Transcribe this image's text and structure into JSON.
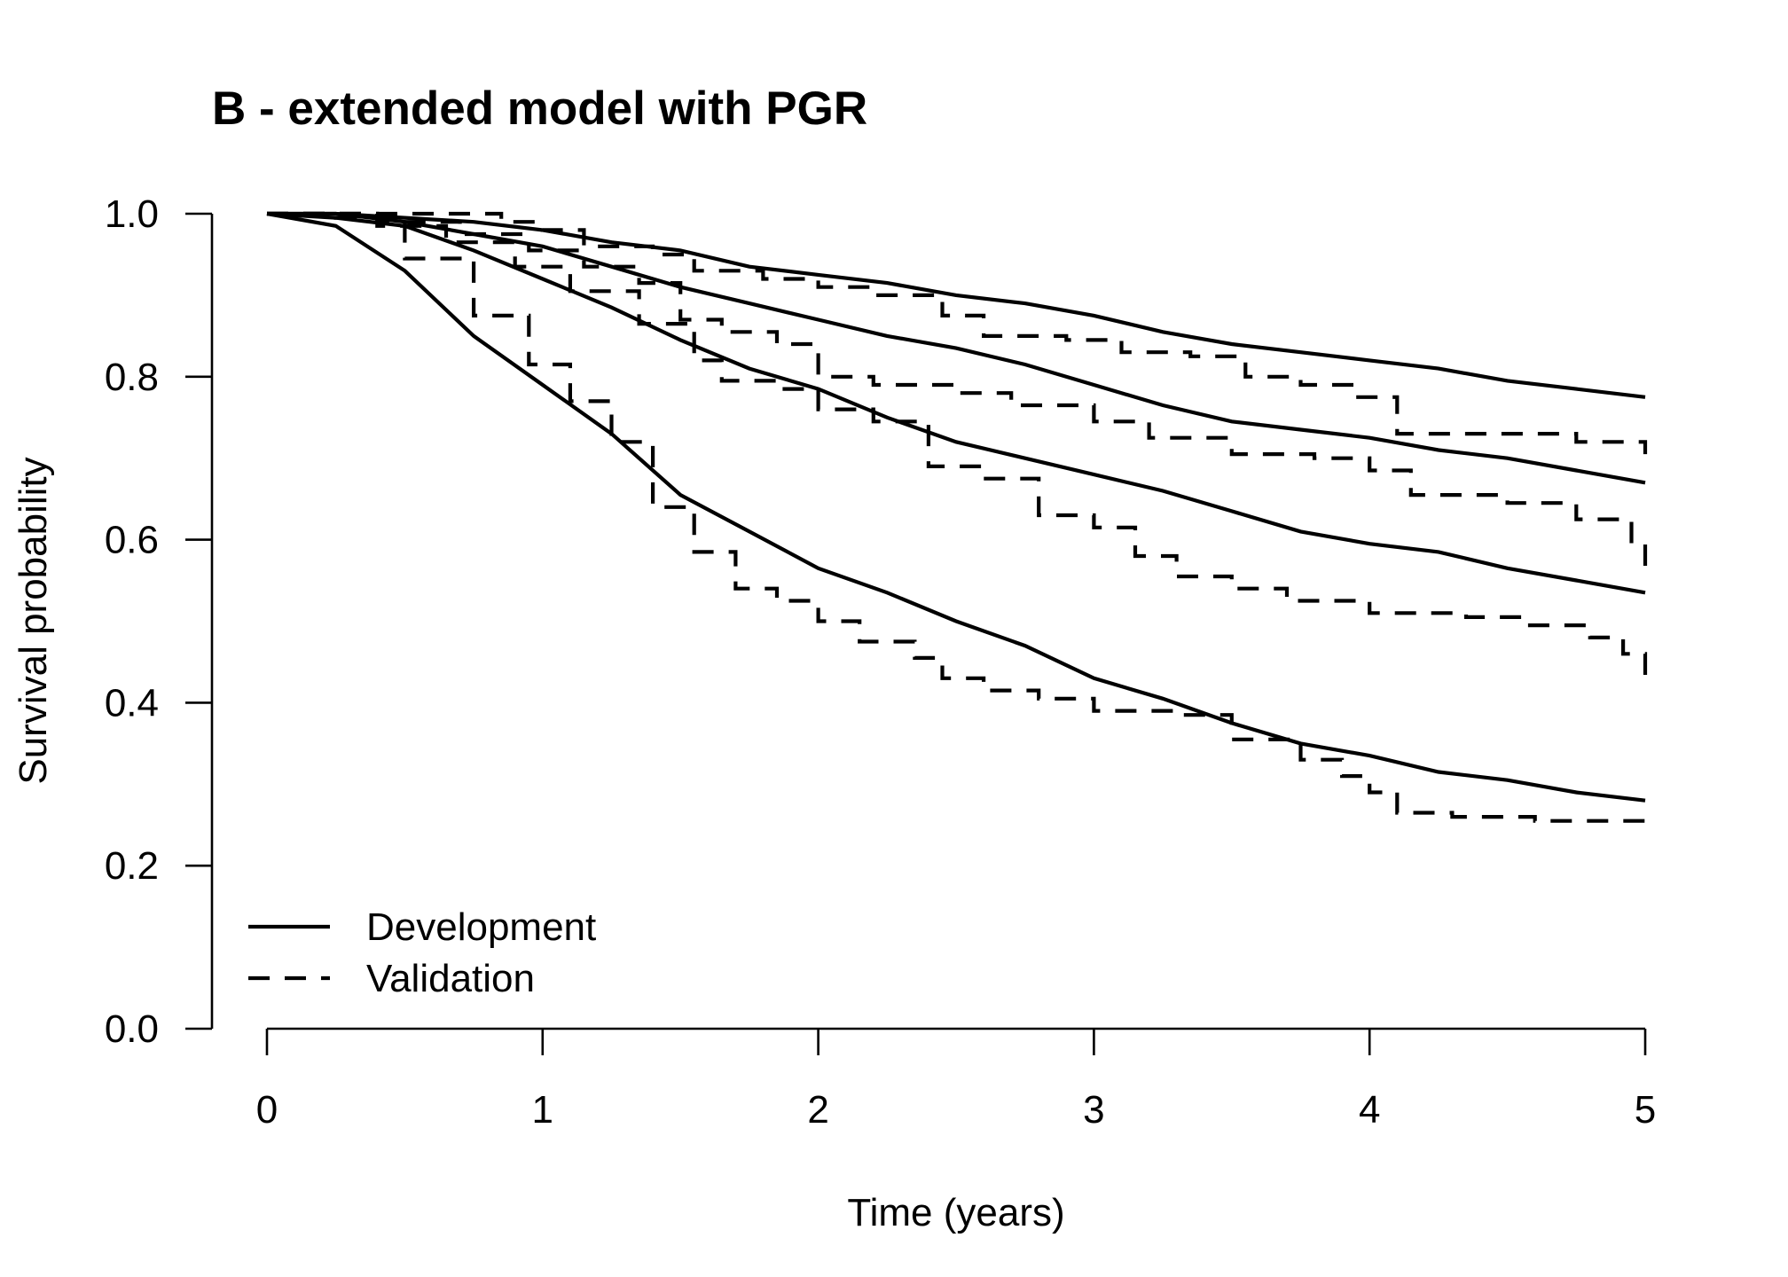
{
  "chart_data": {
    "type": "line",
    "subtype": "step",
    "title": "B - extended model with PGR",
    "xlabel": "Time (years)",
    "ylabel": "Survival probability",
    "xlim": [
      0,
      5
    ],
    "ylim": [
      0,
      1
    ],
    "x_ticks": [
      "0",
      "1",
      "2",
      "3",
      "4",
      "5"
    ],
    "y_ticks": [
      "0.0",
      "0.2",
      "0.4",
      "0.6",
      "0.8",
      "1.0"
    ],
    "grid": false,
    "legend": {
      "position": "bottom-left",
      "entries": [
        {
          "label": "Development",
          "style": "solid"
        },
        {
          "label": "Validation",
          "style": "dashed"
        }
      ]
    },
    "color": "#000000",
    "series": [
      {
        "group": 1,
        "style": "solid",
        "points": [
          [
            0,
            1.0
          ],
          [
            0.25,
            1.0
          ],
          [
            0.5,
            0.995
          ],
          [
            0.75,
            0.99
          ],
          [
            1.0,
            0.98
          ],
          [
            1.25,
            0.965
          ],
          [
            1.5,
            0.955
          ],
          [
            1.75,
            0.935
          ],
          [
            2.0,
            0.925
          ],
          [
            2.25,
            0.915
          ],
          [
            2.5,
            0.9
          ],
          [
            2.75,
            0.89
          ],
          [
            3.0,
            0.875
          ],
          [
            3.25,
            0.855
          ],
          [
            3.5,
            0.84
          ],
          [
            3.75,
            0.83
          ],
          [
            4.0,
            0.82
          ],
          [
            4.25,
            0.81
          ],
          [
            4.5,
            0.795
          ],
          [
            4.75,
            0.785
          ],
          [
            5.0,
            0.775
          ]
        ]
      },
      {
        "group": 1,
        "style": "dashed",
        "points": [
          [
            0,
            1.0
          ],
          [
            0.5,
            1.0
          ],
          [
            0.85,
            0.99
          ],
          [
            1.0,
            0.98
          ],
          [
            1.15,
            0.96
          ],
          [
            1.4,
            0.95
          ],
          [
            1.55,
            0.93
          ],
          [
            1.8,
            0.92
          ],
          [
            2.0,
            0.91
          ],
          [
            2.2,
            0.9
          ],
          [
            2.45,
            0.875
          ],
          [
            2.6,
            0.85
          ],
          [
            2.9,
            0.845
          ],
          [
            3.1,
            0.83
          ],
          [
            3.35,
            0.825
          ],
          [
            3.55,
            0.8
          ],
          [
            3.75,
            0.79
          ],
          [
            3.95,
            0.775
          ],
          [
            4.1,
            0.73
          ],
          [
            4.5,
            0.73
          ],
          [
            4.75,
            0.72
          ],
          [
            5.0,
            0.705
          ]
        ]
      },
      {
        "group": 2,
        "style": "solid",
        "points": [
          [
            0,
            1.0
          ],
          [
            0.25,
            1.0
          ],
          [
            0.5,
            0.99
          ],
          [
            0.75,
            0.975
          ],
          [
            1.0,
            0.96
          ],
          [
            1.25,
            0.935
          ],
          [
            1.5,
            0.91
          ],
          [
            1.75,
            0.89
          ],
          [
            2.0,
            0.87
          ],
          [
            2.25,
            0.85
          ],
          [
            2.5,
            0.835
          ],
          [
            2.75,
            0.815
          ],
          [
            3.0,
            0.79
          ],
          [
            3.25,
            0.765
          ],
          [
            3.5,
            0.745
          ],
          [
            3.75,
            0.735
          ],
          [
            4.0,
            0.725
          ],
          [
            4.25,
            0.71
          ],
          [
            4.5,
            0.7
          ],
          [
            4.75,
            0.685
          ],
          [
            5.0,
            0.67
          ]
        ]
      },
      {
        "group": 2,
        "style": "dashed",
        "points": [
          [
            0,
            1.0
          ],
          [
            0.4,
            0.99
          ],
          [
            0.7,
            0.975
          ],
          [
            0.95,
            0.955
          ],
          [
            1.15,
            0.935
          ],
          [
            1.35,
            0.915
          ],
          [
            1.5,
            0.87
          ],
          [
            1.65,
            0.855
          ],
          [
            1.85,
            0.84
          ],
          [
            2.0,
            0.8
          ],
          [
            2.2,
            0.79
          ],
          [
            2.5,
            0.78
          ],
          [
            2.7,
            0.765
          ],
          [
            3.0,
            0.745
          ],
          [
            3.2,
            0.725
          ],
          [
            3.5,
            0.705
          ],
          [
            3.8,
            0.7
          ],
          [
            4.0,
            0.685
          ],
          [
            4.15,
            0.655
          ],
          [
            4.5,
            0.645
          ],
          [
            4.75,
            0.625
          ],
          [
            4.95,
            0.595
          ],
          [
            5.0,
            0.565
          ]
        ]
      },
      {
        "group": 3,
        "style": "solid",
        "points": [
          [
            0,
            1.0
          ],
          [
            0.25,
            0.995
          ],
          [
            0.5,
            0.985
          ],
          [
            0.75,
            0.955
          ],
          [
            1.0,
            0.92
          ],
          [
            1.25,
            0.885
          ],
          [
            1.5,
            0.845
          ],
          [
            1.75,
            0.81
          ],
          [
            2.0,
            0.785
          ],
          [
            2.25,
            0.75
          ],
          [
            2.5,
            0.72
          ],
          [
            2.75,
            0.7
          ],
          [
            3.0,
            0.68
          ],
          [
            3.25,
            0.66
          ],
          [
            3.5,
            0.635
          ],
          [
            3.75,
            0.61
          ],
          [
            4.0,
            0.595
          ],
          [
            4.25,
            0.585
          ],
          [
            4.5,
            0.565
          ],
          [
            4.75,
            0.55
          ],
          [
            5.0,
            0.535
          ]
        ]
      },
      {
        "group": 3,
        "style": "dashed",
        "points": [
          [
            0,
            1.0
          ],
          [
            0.4,
            0.985
          ],
          [
            0.65,
            0.965
          ],
          [
            0.9,
            0.935
          ],
          [
            1.1,
            0.905
          ],
          [
            1.35,
            0.865
          ],
          [
            1.55,
            0.82
          ],
          [
            1.65,
            0.795
          ],
          [
            1.85,
            0.785
          ],
          [
            2.0,
            0.76
          ],
          [
            2.2,
            0.745
          ],
          [
            2.4,
            0.69
          ],
          [
            2.6,
            0.675
          ],
          [
            2.8,
            0.63
          ],
          [
            3.0,
            0.615
          ],
          [
            3.15,
            0.58
          ],
          [
            3.3,
            0.555
          ],
          [
            3.5,
            0.54
          ],
          [
            3.7,
            0.525
          ],
          [
            4.0,
            0.51
          ],
          [
            4.35,
            0.505
          ],
          [
            4.55,
            0.495
          ],
          [
            4.8,
            0.48
          ],
          [
            4.92,
            0.46
          ],
          [
            5.0,
            0.42
          ]
        ]
      },
      {
        "group": 4,
        "style": "solid",
        "points": [
          [
            0,
            1.0
          ],
          [
            0.25,
            0.985
          ],
          [
            0.5,
            0.93
          ],
          [
            0.75,
            0.85
          ],
          [
            1.0,
            0.79
          ],
          [
            1.25,
            0.73
          ],
          [
            1.5,
            0.655
          ],
          [
            1.75,
            0.61
          ],
          [
            2.0,
            0.565
          ],
          [
            2.25,
            0.535
          ],
          [
            2.5,
            0.5
          ],
          [
            2.75,
            0.47
          ],
          [
            3.0,
            0.43
          ],
          [
            3.25,
            0.405
          ],
          [
            3.5,
            0.375
          ],
          [
            3.75,
            0.35
          ],
          [
            4.0,
            0.335
          ],
          [
            4.25,
            0.315
          ],
          [
            4.5,
            0.305
          ],
          [
            4.75,
            0.29
          ],
          [
            5.0,
            0.28
          ]
        ]
      },
      {
        "group": 4,
        "style": "dashed",
        "points": [
          [
            0,
            1.0
          ],
          [
            0.25,
            0.995
          ],
          [
            0.5,
            0.945
          ],
          [
            0.75,
            0.875
          ],
          [
            0.95,
            0.815
          ],
          [
            1.1,
            0.77
          ],
          [
            1.25,
            0.72
          ],
          [
            1.4,
            0.64
          ],
          [
            1.55,
            0.585
          ],
          [
            1.7,
            0.54
          ],
          [
            1.85,
            0.525
          ],
          [
            2.0,
            0.5
          ],
          [
            2.15,
            0.475
          ],
          [
            2.35,
            0.455
          ],
          [
            2.45,
            0.43
          ],
          [
            2.6,
            0.415
          ],
          [
            2.8,
            0.405
          ],
          [
            3.0,
            0.39
          ],
          [
            3.3,
            0.385
          ],
          [
            3.5,
            0.355
          ],
          [
            3.75,
            0.33
          ],
          [
            3.9,
            0.31
          ],
          [
            4.0,
            0.29
          ],
          [
            4.1,
            0.265
          ],
          [
            4.3,
            0.26
          ],
          [
            4.6,
            0.255
          ],
          [
            5.0,
            0.255
          ]
        ]
      }
    ]
  }
}
